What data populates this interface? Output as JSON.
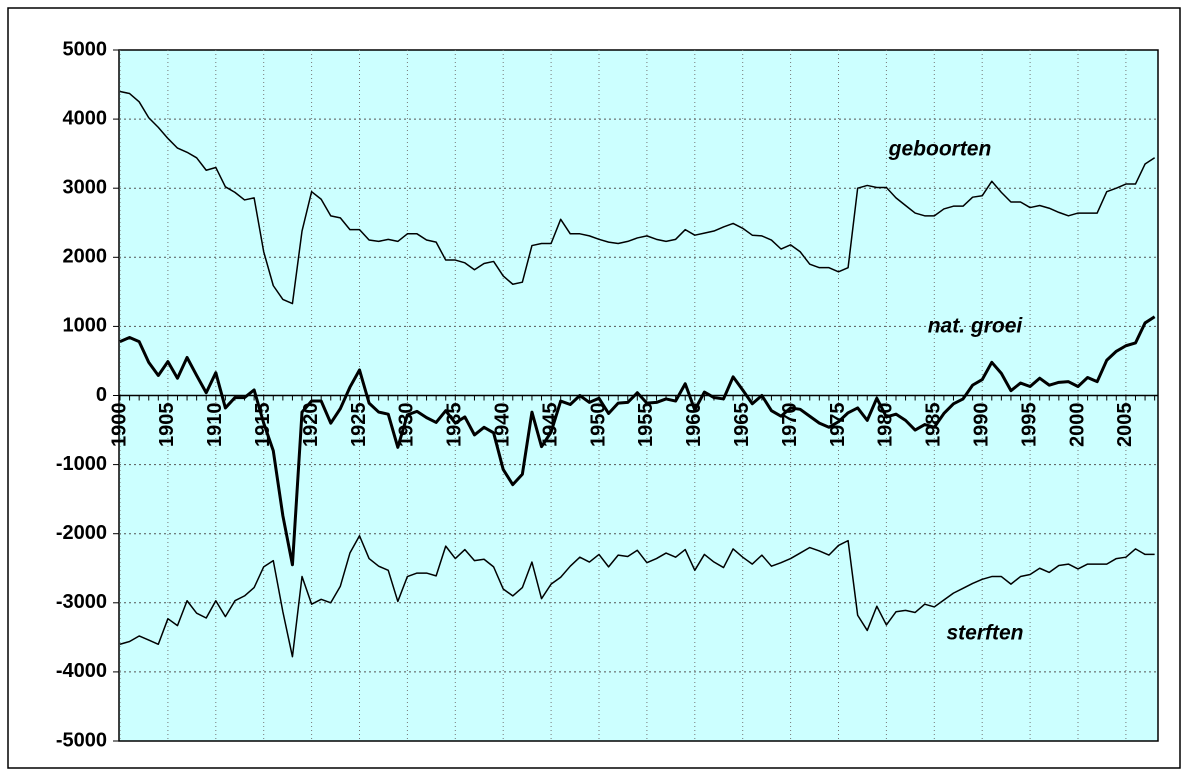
{
  "chart_data": {
    "type": "line",
    "categories": [
      "1900",
      null,
      null,
      null,
      null,
      "1905",
      null,
      null,
      null,
      null,
      "1910",
      null,
      null,
      null,
      null,
      "1915",
      null,
      null,
      null,
      null,
      "1920",
      null,
      null,
      null,
      null,
      "1925",
      null,
      null,
      null,
      null,
      "1930",
      null,
      null,
      null,
      null,
      "1935",
      null,
      null,
      null,
      null,
      "1940",
      null,
      null,
      null,
      null,
      "1945",
      null,
      null,
      null,
      null,
      "1950",
      null,
      null,
      null,
      null,
      "1955",
      null,
      null,
      null,
      null,
      "1960",
      null,
      null,
      null,
      null,
      "1965",
      null,
      null,
      null,
      null,
      "1970",
      null,
      null,
      null,
      null,
      "1975",
      null,
      null,
      null,
      null,
      "1980",
      null,
      null,
      null,
      null,
      "1985",
      null,
      null,
      null,
      null,
      "1990",
      null,
      null,
      null,
      null,
      "1995",
      null,
      null,
      null,
      null,
      "2000",
      null,
      null,
      null,
      null,
      "2005",
      null,
      null,
      null
    ],
    "series": [
      {
        "name": "geboorten",
        "color": "#000000",
        "line_width": 1.5,
        "values": [
          4400,
          4370,
          4250,
          4020,
          3880,
          3720,
          3580,
          3520,
          3440,
          3260,
          3300,
          3020,
          2940,
          2830,
          2860,
          2080,
          1590,
          1390,
          1330,
          2380,
          2950,
          2840,
          2600,
          2570,
          2400,
          2400,
          2250,
          2230,
          2260,
          2230,
          2340,
          2340,
          2250,
          2220,
          1960,
          1960,
          1920,
          1820,
          1910,
          1940,
          1730,
          1610,
          1640,
          2170,
          2200,
          2200,
          2550,
          2340,
          2340,
          2310,
          2260,
          2220,
          2200,
          2230,
          2280,
          2310,
          2260,
          2230,
          2260,
          2400,
          2320,
          2350,
          2380,
          2440,
          2490,
          2420,
          2320,
          2310,
          2250,
          2120,
          2180,
          2080,
          1900,
          1850,
          1850,
          1790,
          1850,
          3000,
          3040,
          3010,
          3010,
          2860,
          2750,
          2640,
          2600,
          2600,
          2700,
          2740,
          2740,
          2870,
          2890,
          3100,
          2940,
          2800,
          2800,
          2720,
          2750,
          2710,
          2650,
          2600,
          2640,
          2640,
          2640,
          2950,
          3000,
          3060,
          3060,
          3350,
          3440
        ]
      },
      {
        "name": "nat. groei",
        "color": "#000000",
        "line_width": 3,
        "values": [
          780,
          840,
          780,
          480,
          290,
          490,
          250,
          550,
          290,
          40,
          330,
          -180,
          -30,
          -30,
          80,
          -400,
          -800,
          -1740,
          -2450,
          -240,
          -80,
          -80,
          -400,
          -190,
          120,
          370,
          -110,
          -240,
          -270,
          -750,
          -280,
          -230,
          -320,
          -390,
          -220,
          -400,
          -310,
          -570,
          -460,
          -540,
          -1070,
          -1290,
          -1140,
          -240,
          -740,
          -530,
          -80,
          -130,
          0,
          -100,
          -40,
          -260,
          -110,
          -100,
          40,
          -110,
          -100,
          -50,
          -80,
          170,
          -210,
          50,
          -30,
          -50,
          270,
          80,
          -120,
          0,
          -220,
          -300,
          -180,
          -200,
          -300,
          -400,
          -460,
          -380,
          -250,
          -180,
          -360,
          -40,
          -310,
          -270,
          -360,
          -500,
          -420,
          -460,
          -260,
          -120,
          -50,
          150,
          230,
          480,
          320,
          70,
          180,
          130,
          250,
          150,
          190,
          200,
          130,
          260,
          200,
          510,
          640,
          720,
          760,
          1050,
          1140
        ]
      },
      {
        "name": "sterften",
        "color": "#000000",
        "line_width": 1.5,
        "values": [
          -3600,
          -3560,
          -3480,
          -3540,
          -3600,
          -3230,
          -3330,
          -2970,
          -3150,
          -3220,
          -2970,
          -3200,
          -2970,
          -2900,
          -2780,
          -2480,
          -2390,
          -3130,
          -3780,
          -2620,
          -3020,
          -2950,
          -3000,
          -2760,
          -2280,
          -2030,
          -2360,
          -2470,
          -2530,
          -2980,
          -2620,
          -2570,
          -2570,
          -2610,
          -2180,
          -2360,
          -2230,
          -2390,
          -2370,
          -2480,
          -2800,
          -2900,
          -2780,
          -2410,
          -2940,
          -2730,
          -2630,
          -2470,
          -2340,
          -2410,
          -2300,
          -2480,
          -2310,
          -2330,
          -2240,
          -2420,
          -2360,
          -2280,
          -2340,
          -2230,
          -2530,
          -2300,
          -2410,
          -2490,
          -2220,
          -2340,
          -2440,
          -2310,
          -2470,
          -2420,
          -2360,
          -2280,
          -2200,
          -2250,
          -2310,
          -2170,
          -2100,
          -3180,
          -3400,
          -3050,
          -3320,
          -3130,
          -3110,
          -3140,
          -3020,
          -3060,
          -2960,
          -2860,
          -2790,
          -2720,
          -2660,
          -2620,
          -2620,
          -2730,
          -2620,
          -2590,
          -2500,
          -2560,
          -2460,
          -2440,
          -2510,
          -2440,
          -2440,
          -2440,
          -2360,
          -2340,
          -2220,
          -2300,
          -2300
        ]
      }
    ],
    "ylim": [
      -5000,
      5000
    ],
    "yticks": [
      -5000,
      -4000,
      -3000,
      -2000,
      -1000,
      0,
      1000,
      2000,
      3000,
      4000,
      5000
    ],
    "grid": true,
    "plot_background": "#ccffff"
  }
}
